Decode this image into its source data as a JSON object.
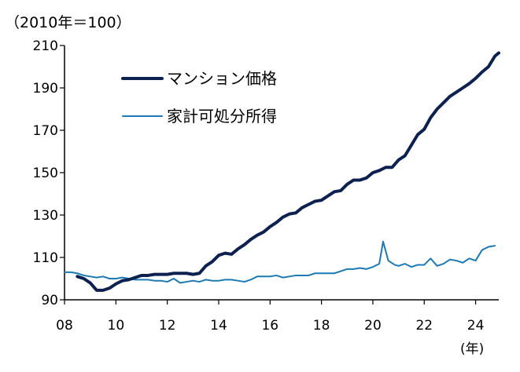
{
  "chart_data": {
    "type": "line",
    "y_unit_label": "（2010年＝100）",
    "x_unit_label": "(年)",
    "xlim": [
      2008,
      2024.9
    ],
    "ylim": [
      90,
      210
    ],
    "y_ticks": [
      90,
      110,
      130,
      150,
      170,
      190,
      210
    ],
    "y_tick_labels": [
      "90",
      "110",
      "130",
      "150",
      "170",
      "190",
      "210"
    ],
    "x_ticks": [
      2008,
      2010,
      2012,
      2014,
      2016,
      2018,
      2020,
      2022,
      2024
    ],
    "x_tick_labels": [
      "08",
      "10",
      "12",
      "14",
      "16",
      "18",
      "20",
      "22",
      "24"
    ],
    "grid": false,
    "legend_position": "top-left",
    "series": [
      {
        "name": "マンション価格",
        "color": "#0d2150",
        "line_style": "thick",
        "points": [
          [
            2008.5,
            101
          ],
          [
            2008.75,
            100
          ],
          [
            2009.0,
            98
          ],
          [
            2009.25,
            94.5
          ],
          [
            2009.5,
            94.5
          ],
          [
            2009.75,
            95.5
          ],
          [
            2010.0,
            97.5
          ],
          [
            2010.25,
            99
          ],
          [
            2010.5,
            99.5
          ],
          [
            2010.75,
            100.5
          ],
          [
            2011.0,
            101.5
          ],
          [
            2011.25,
            101.5
          ],
          [
            2011.5,
            102
          ],
          [
            2011.75,
            102
          ],
          [
            2012.0,
            102
          ],
          [
            2012.25,
            102.5
          ],
          [
            2012.5,
            102.5
          ],
          [
            2012.75,
            102.5
          ],
          [
            2013.0,
            102
          ],
          [
            2013.25,
            102.5
          ],
          [
            2013.5,
            106
          ],
          [
            2013.75,
            108
          ],
          [
            2014.0,
            111
          ],
          [
            2014.25,
            112
          ],
          [
            2014.5,
            111.5
          ],
          [
            2014.75,
            114
          ],
          [
            2015.0,
            116
          ],
          [
            2015.25,
            118.5
          ],
          [
            2015.5,
            120.5
          ],
          [
            2015.75,
            122
          ],
          [
            2016.0,
            124.5
          ],
          [
            2016.25,
            126.5
          ],
          [
            2016.5,
            129
          ],
          [
            2016.75,
            130.5
          ],
          [
            2017.0,
            131
          ],
          [
            2017.25,
            133.5
          ],
          [
            2017.5,
            135
          ],
          [
            2017.75,
            136.5
          ],
          [
            2018.0,
            137
          ],
          [
            2018.25,
            139
          ],
          [
            2018.5,
            141
          ],
          [
            2018.75,
            141.5
          ],
          [
            2019.0,
            144.5
          ],
          [
            2019.25,
            146.5
          ],
          [
            2019.5,
            146.5
          ],
          [
            2019.75,
            147.5
          ],
          [
            2020.0,
            150
          ],
          [
            2020.25,
            151
          ],
          [
            2020.5,
            152.5
          ],
          [
            2020.75,
            152.5
          ],
          [
            2021.0,
            156
          ],
          [
            2021.25,
            158
          ],
          [
            2021.5,
            163
          ],
          [
            2021.75,
            168
          ],
          [
            2022.0,
            170.5
          ],
          [
            2022.25,
            176
          ],
          [
            2022.5,
            180
          ],
          [
            2022.75,
            183
          ],
          [
            2023.0,
            186
          ],
          [
            2023.25,
            188
          ],
          [
            2023.5,
            190
          ],
          [
            2023.75,
            192
          ],
          [
            2024.0,
            194.5
          ],
          [
            2024.25,
            197.5
          ],
          [
            2024.5,
            200
          ],
          [
            2024.75,
            205
          ],
          [
            2024.9,
            206.5
          ]
        ]
      },
      {
        "name": "家計可処分所得",
        "color": "#1b79b5",
        "line_style": "thin",
        "points": [
          [
            2008.0,
            103
          ],
          [
            2008.25,
            103
          ],
          [
            2008.5,
            102.5
          ],
          [
            2008.75,
            101.5
          ],
          [
            2009.0,
            101
          ],
          [
            2009.25,
            100.5
          ],
          [
            2009.5,
            101
          ],
          [
            2009.75,
            100
          ],
          [
            2010.0,
            100
          ],
          [
            2010.25,
            100.5
          ],
          [
            2010.5,
            100
          ],
          [
            2010.75,
            99.5
          ],
          [
            2011.0,
            99.5
          ],
          [
            2011.25,
            99.5
          ],
          [
            2011.5,
            99
          ],
          [
            2011.75,
            99
          ],
          [
            2012.0,
            98.5
          ],
          [
            2012.25,
            100
          ],
          [
            2012.5,
            98
          ],
          [
            2012.75,
            98.5
          ],
          [
            2013.0,
            99
          ],
          [
            2013.25,
            98.5
          ],
          [
            2013.5,
            99.5
          ],
          [
            2013.75,
            99
          ],
          [
            2014.0,
            99
          ],
          [
            2014.25,
            99.5
          ],
          [
            2014.5,
            99.5
          ],
          [
            2014.75,
            99
          ],
          [
            2015.0,
            98.5
          ],
          [
            2015.25,
            99.5
          ],
          [
            2015.5,
            101
          ],
          [
            2015.75,
            101
          ],
          [
            2016.0,
            101
          ],
          [
            2016.25,
            101.5
          ],
          [
            2016.5,
            100.5
          ],
          [
            2016.75,
            101
          ],
          [
            2017.0,
            101.5
          ],
          [
            2017.25,
            101.5
          ],
          [
            2017.5,
            101.5
          ],
          [
            2017.75,
            102.5
          ],
          [
            2018.0,
            102.5
          ],
          [
            2018.25,
            102.5
          ],
          [
            2018.5,
            102.5
          ],
          [
            2018.75,
            103.5
          ],
          [
            2019.0,
            104.5
          ],
          [
            2019.25,
            104.5
          ],
          [
            2019.5,
            105
          ],
          [
            2019.75,
            104.5
          ],
          [
            2020.0,
            105.5
          ],
          [
            2020.25,
            107
          ],
          [
            2020.4,
            117.5
          ],
          [
            2020.6,
            108.5
          ],
          [
            2020.85,
            106.5
          ],
          [
            2021.0,
            106
          ],
          [
            2021.25,
            107
          ],
          [
            2021.5,
            105.5
          ],
          [
            2021.75,
            106.5
          ],
          [
            2022.0,
            106.5
          ],
          [
            2022.25,
            109.5
          ],
          [
            2022.5,
            106
          ],
          [
            2022.75,
            107
          ],
          [
            2023.0,
            109
          ],
          [
            2023.25,
            108.5
          ],
          [
            2023.5,
            107.5
          ],
          [
            2023.75,
            109.5
          ],
          [
            2024.0,
            108.5
          ],
          [
            2024.25,
            113.5
          ],
          [
            2024.5,
            115
          ],
          [
            2024.75,
            115.5
          ]
        ]
      }
    ]
  }
}
